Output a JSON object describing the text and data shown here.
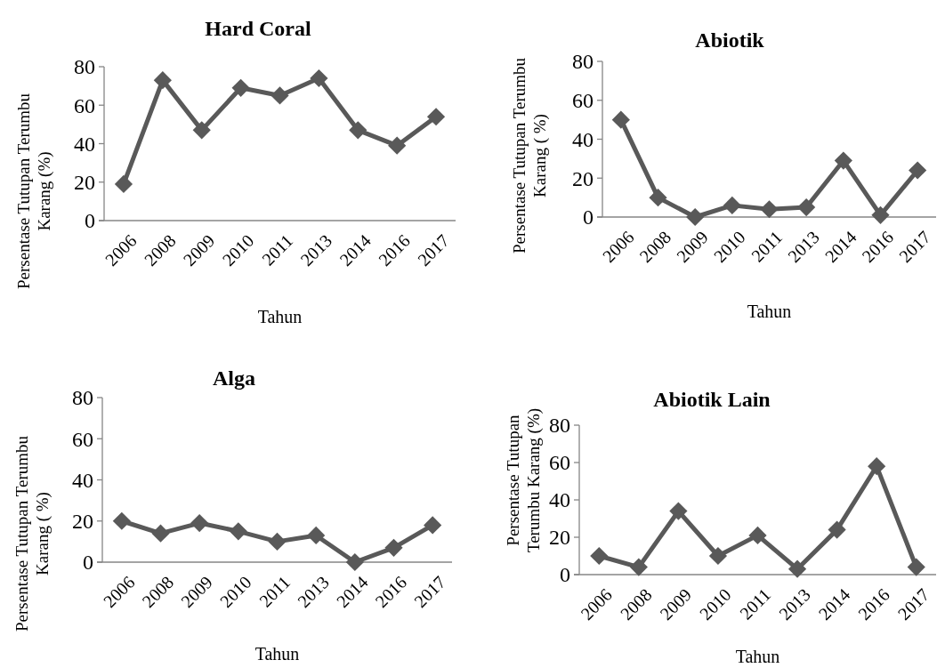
{
  "chart_data": [
    {
      "type": "line",
      "title": "Hard  Coral",
      "xlabel": "Tahun",
      "ylabel": "Persentase Tutupan Terumbu\nKarang  (%)",
      "categories": [
        "2006",
        "2008",
        "2009",
        "2010",
        "2011",
        "2013",
        "2014",
        "2016",
        "2017"
      ],
      "series": [
        {
          "color": "#595959",
          "values": [
            19,
            73,
            47,
            69,
            65,
            74,
            47,
            39,
            54
          ]
        }
      ],
      "ylim": [
        0,
        80
      ],
      "yticks": [
        0,
        20,
        40,
        60,
        80
      ],
      "marker": "diamond"
    },
    {
      "type": "line",
      "title": "Abiotik",
      "xlabel": "Tahun",
      "ylabel": "Persentase Tutupan Terumbu\nKarang ( %)",
      "categories": [
        "2006",
        "2008",
        "2009",
        "2010",
        "2011",
        "2013",
        "2014",
        "2016",
        "2017"
      ],
      "series": [
        {
          "color": "#595959",
          "values": [
            50,
            10,
            0,
            6,
            4,
            5,
            29,
            1,
            24
          ]
        }
      ],
      "ylim": [
        0,
        80
      ],
      "yticks": [
        0,
        20,
        40,
        60,
        80
      ],
      "marker": "diamond"
    },
    {
      "type": "line",
      "title": "Alga",
      "xlabel": "Tahun",
      "ylabel": "Persentase Tutupan Terumbu\nKarang ( %)",
      "categories": [
        "2006",
        "2008",
        "2009",
        "2010",
        "2011",
        "2013",
        "2014",
        "2016",
        "2017"
      ],
      "series": [
        {
          "color": "#595959",
          "values": [
            20,
            14,
            19,
            15,
            10,
            13,
            0,
            7,
            18
          ]
        }
      ],
      "ylim": [
        0,
        80
      ],
      "yticks": [
        0,
        20,
        40,
        60,
        80
      ],
      "marker": "diamond"
    },
    {
      "type": "line",
      "title": "Abiotik  Lain",
      "xlabel": "Tahun",
      "ylabel": "Persentase Tutupan\nTerumbu Karang (%)",
      "categories": [
        "2006",
        "2008",
        "2009",
        "2010",
        "2011",
        "2013",
        "2014",
        "2016",
        "2017"
      ],
      "series": [
        {
          "color": "#595959",
          "values": [
            10,
            4,
            34,
            10,
            21,
            3,
            24,
            58,
            4
          ]
        }
      ],
      "ylim": [
        0,
        80
      ],
      "yticks": [
        0,
        20,
        40,
        60,
        80
      ],
      "marker": "diamond"
    }
  ]
}
